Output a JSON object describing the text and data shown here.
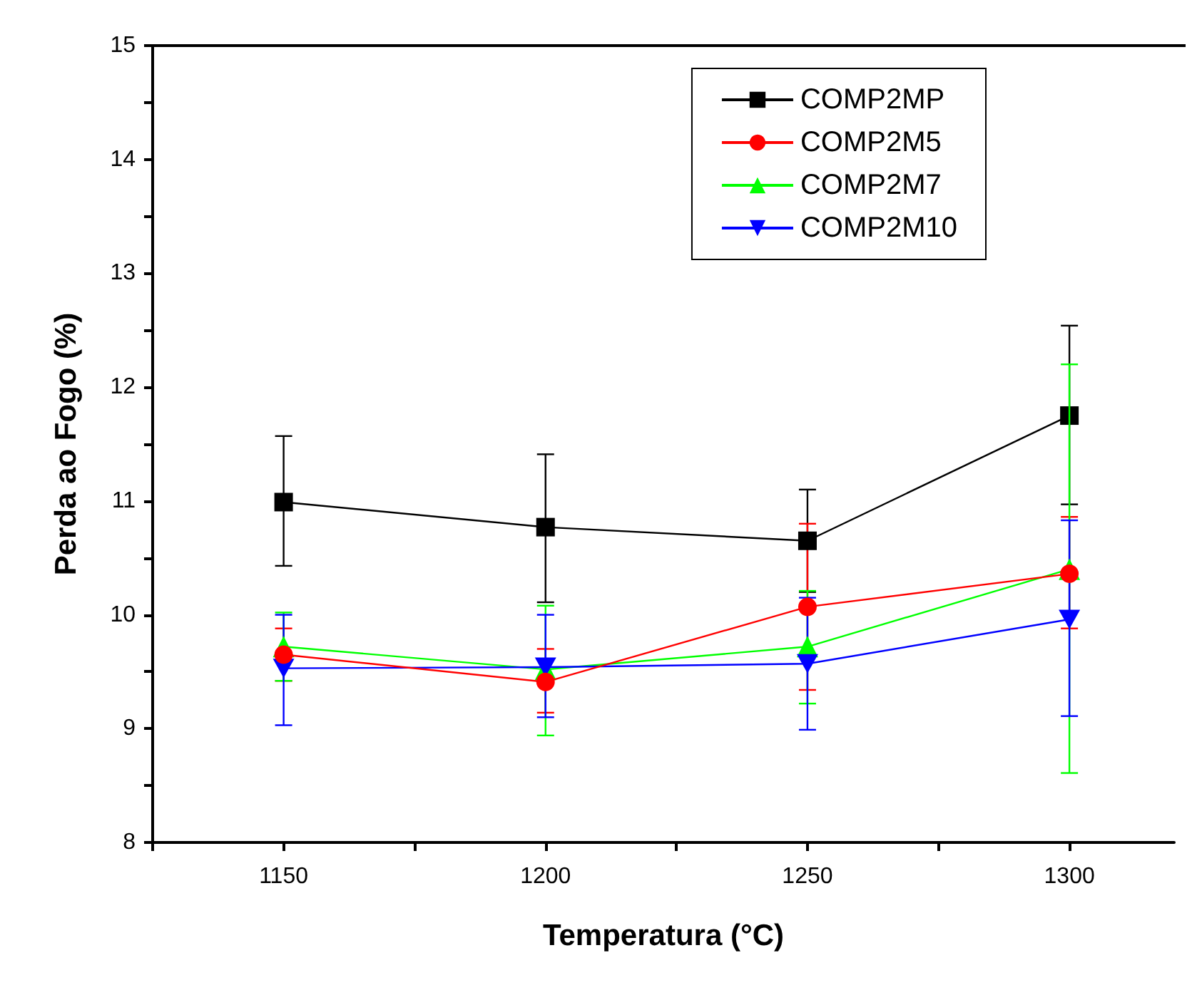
{
  "chart_data": {
    "type": "line",
    "xlabel": "Temperatura (°C)",
    "ylabel": "Perda ao Fogo (%)",
    "x": [
      1150,
      1200,
      1250,
      1300
    ],
    "xlim": [
      1125,
      1320
    ],
    "xticks": [
      {
        "value": 1125,
        "label": null
      },
      1150,
      {
        "value": 1175,
        "label": null
      },
      1200,
      {
        "value": 1225,
        "label": null
      },
      1250,
      {
        "value": 1275,
        "label": null
      },
      1300
    ],
    "ylim": [
      8,
      15
    ],
    "yticks": [
      8,
      {
        "value": 8.5,
        "label": null
      },
      9,
      {
        "value": 9.5,
        "label": null
      },
      10,
      {
        "value": 10.5,
        "label": null
      },
      11,
      {
        "value": 11.5,
        "label": null
      },
      12,
      {
        "value": 12.5,
        "label": null
      },
      13,
      {
        "value": 13.5,
        "label": null
      },
      14,
      {
        "value": 14.5,
        "label": null
      },
      15
    ],
    "grid": false,
    "legend": "top right",
    "line_style": "solid",
    "series": [
      {
        "name": "COMP2MP",
        "color": "#000000",
        "marker": "square",
        "values": [
          10.99,
          10.77,
          10.65,
          11.75
        ],
        "errors": [
          [
            10.43,
            11.57
          ],
          [
            10.11,
            11.41
          ],
          [
            10.2,
            11.1
          ],
          [
            10.97,
            12.54
          ]
        ]
      },
      {
        "name": "COMP2M5",
        "color": "#ff0000",
        "marker": "circle",
        "values": [
          9.65,
          9.41,
          10.07,
          10.36
        ],
        "errors": [
          [
            9.42,
            9.88
          ],
          [
            9.14,
            9.7
          ],
          [
            9.34,
            10.8
          ],
          [
            9.88,
            10.86
          ]
        ]
      },
      {
        "name": "COMP2M7",
        "color": "#00ff00",
        "marker": "triangle",
        "values": [
          9.72,
          9.52,
          9.72,
          10.4
        ],
        "errors": [
          [
            9.42,
            10.02
          ],
          [
            8.94,
            10.08
          ],
          [
            9.22,
            10.21
          ],
          [
            8.61,
            12.2
          ]
        ]
      },
      {
        "name": "COMP2M10",
        "color": "#0000ff",
        "marker": "triangle-down",
        "values": [
          9.53,
          9.54,
          9.57,
          9.96
        ],
        "errors": [
          [
            9.03,
            10.0
          ],
          [
            9.1,
            10.0
          ],
          [
            8.99,
            10.15
          ],
          [
            9.11,
            10.83
          ]
        ]
      }
    ]
  }
}
